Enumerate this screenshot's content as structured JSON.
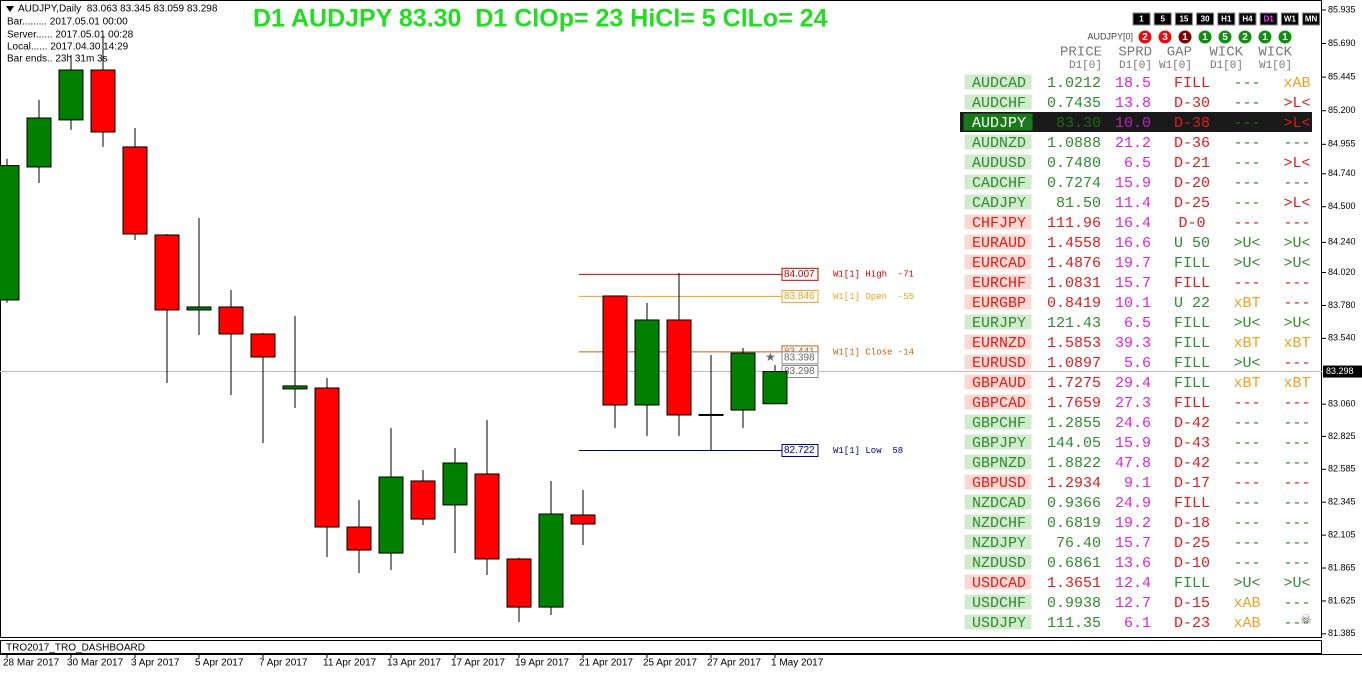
{
  "info": {
    "symbol_line": "AUDJPY,Daily  83.063 83.345 83.059 83.298",
    "lines": [
      "Bar......... 2017.05.01 00:00",
      "Server...... 2017.05.01 00:28",
      "Local...... 2017.04.30 14:29",
      "Bar ends.. 23h 31m 3s"
    ]
  },
  "chart_data": {
    "type": "candlestick",
    "title": "D1 AUDJPY 83.30  D1 ClOp= 23 HiCl= 5 ClLo= 24",
    "categories": [
      "28 Mar 2017",
      null,
      "30 Mar 2017",
      null,
      "3 Apr 2017",
      null,
      "5 Apr 2017",
      null,
      "7 Apr 2017",
      null,
      "11 Apr 2017",
      null,
      "13 Apr 2017",
      null,
      "17 Apr 2017",
      null,
      "19 Apr 2017",
      null,
      "21 Apr 2017",
      null,
      "25 Apr 2017",
      null,
      "27 Apr 2017",
      null,
      "1 May 2017"
    ],
    "open": [
      83.82,
      84.79,
      85.133,
      85.497,
      84.936,
      84.294,
      83.747,
      83.769,
      83.572,
      83.171,
      83.178,
      82.164,
      81.974,
      82.5,
      82.325,
      82.551,
      81.931,
      81.58,
      82.252,
      83.849,
      83.054,
      83.674,
      82.981,
      83.017,
      83.063
    ],
    "high": [
      84.85,
      85.279,
      85.607,
      85.753,
      85.074,
      84.3,
      84.418,
      83.893,
      83.58,
      83.703,
      83.251,
      82.361,
      82.886,
      82.58,
      82.74,
      82.945,
      81.94,
      82.5,
      82.434,
      83.85,
      83.798,
      84.017,
      83.419,
      83.47,
      83.345
    ],
    "low": [
      83.8,
      84.673,
      85.06,
      84.936,
      84.257,
      83.214,
      83.564,
      83.127,
      82.777,
      83.032,
      81.945,
      81.829,
      81.85,
      82.179,
      81.974,
      81.814,
      81.471,
      81.522,
      82.033,
      82.886,
      82.828,
      82.828,
      82.722,
      82.886,
      83.059
    ],
    "close": [
      84.8,
      85.147,
      85.497,
      85.045,
      84.301,
      83.747,
      83.769,
      83.572,
      83.404,
      83.193,
      82.164,
      81.996,
      82.529,
      82.222,
      82.631,
      81.931,
      81.58,
      82.259,
      82.186,
      83.054,
      83.674,
      82.981,
      82.985,
      83.433,
      83.298
    ],
    "up_color": "#008000",
    "down_color": "#ff0000",
    "ylim": [
      81.362,
      85.993
    ],
    "yticks": [
      85.935,
      {
        "value": 85.69,
        "label": "85.690"
      },
      85.445,
      {
        "value": 85.2,
        "label": "85.200"
      },
      84.955,
      {
        "value": 84.74,
        "label": "84.740"
      },
      {
        "value": 84.5,
        "label": "84.500"
      },
      {
        "value": 84.24,
        "label": "84.240"
      },
      {
        "value": 84.02,
        "label": "84.020"
      },
      {
        "value": 83.78,
        "label": "83.780"
      },
      {
        "value": 83.54,
        "label": "83.540"
      },
      {
        "value": 83.06,
        "label": "83.060"
      },
      82.825,
      82.585,
      82.345,
      82.105,
      81.865,
      81.625,
      81.385
    ],
    "last_price": 83.298,
    "levels": [
      {
        "value": 84.007,
        "label": "W1[1] High  -71",
        "color": "#cc0000"
      },
      {
        "value": 83.846,
        "label": "W1[1] Open  -55",
        "color": "#f0a020"
      },
      {
        "value": 83.441,
        "label": "W1[1] Close -14",
        "color": "#c0601a"
      },
      {
        "value": 82.722,
        "label": "W1[1] Low  58",
        "color": "#000090"
      }
    ],
    "price_boxes": [
      83.398,
      83.298
    ]
  },
  "indicator_name": "TRO2017_TRO_DASHBOARD",
  "dashboard": {
    "timeframes": [
      {
        "label": "1",
        "color": "#ffffff"
      },
      {
        "label": "5",
        "color": "#ffffff"
      },
      {
        "label": "15",
        "color": "#ffffff"
      },
      {
        "label": "30",
        "color": "#ffffff"
      },
      {
        "label": "H1",
        "color": "#ffffff"
      },
      {
        "label": "H4",
        "color": "#ffffff"
      },
      {
        "label": "D1",
        "color": "#ff40ff"
      },
      {
        "label": "W1",
        "color": "#ffffff"
      },
      {
        "label": "MN",
        "color": "#ffffff"
      }
    ],
    "symbol": "AUDJPY[0]",
    "counts": [
      {
        "label": "2",
        "color": "#e01010"
      },
      {
        "label": "3",
        "color": "#e01010"
      },
      {
        "label": "1",
        "color": "#800000"
      },
      {
        "label": "1",
        "color": "#109010"
      },
      {
        "label": "5",
        "color": "#109010"
      },
      {
        "label": "2",
        "color": "#109010"
      },
      {
        "label": "1",
        "color": "#109010"
      },
      {
        "label": "1",
        "color": "#109010"
      }
    ],
    "columns": [
      [
        "PRICE",
        "D1[0]"
      ],
      [
        "SPRD",
        "D1[0]"
      ],
      [
        "GAP",
        "W1[0]"
      ],
      [
        "WICK",
        "D1[0]"
      ],
      [
        "WICK",
        "W1[0]"
      ]
    ],
    "highlight_row": 2,
    "rows": [
      {
        "cells": [
          "AUDCAD",
          "1.0212",
          "18.5",
          "FILL",
          "---",
          "xAB"
        ],
        "colors": [
          "#2e8b2e",
          "#2e8b2e",
          "#e020e0",
          "#e01b1b",
          "#2e8b2e",
          "#f0a020"
        ]
      },
      {
        "cells": [
          "AUDCHF",
          "0.7435",
          "13.8",
          "D-30",
          "---",
          ">L<"
        ],
        "colors": [
          "#2e8b2e",
          "#2e8b2e",
          "#e020e0",
          "#e01b1b",
          "#2e8b2e",
          "#e01b1b"
        ]
      },
      {
        "cells": [
          "AUDJPY",
          "83.30",
          "10.0",
          "D-38",
          "---",
          ">L<"
        ],
        "colors": [
          "#ffffff",
          "#1a6a1a",
          "#c020c0",
          "#e01b1b",
          "#1a6a1a",
          "#e01b1b"
        ]
      },
      {
        "cells": [
          "AUDNZD",
          "1.0888",
          "21.2",
          "D-36",
          "---",
          "---"
        ],
        "colors": [
          "#2e8b2e",
          "#2e8b2e",
          "#e020e0",
          "#e01b1b",
          "#2e8b2e",
          "#2e8b2e"
        ]
      },
      {
        "cells": [
          "AUDUSD",
          "0.7480",
          "6.5",
          "D-21",
          "---",
          ">L<"
        ],
        "colors": [
          "#2e8b2e",
          "#2e8b2e",
          "#e020e0",
          "#e01b1b",
          "#2e8b2e",
          "#e01b1b"
        ]
      },
      {
        "cells": [
          "CADCHF",
          "0.7274",
          "15.9",
          "D-20",
          "---",
          "---"
        ],
        "colors": [
          "#2e8b2e",
          "#2e8b2e",
          "#e020e0",
          "#e01b1b",
          "#2e8b2e",
          "#2e8b2e"
        ]
      },
      {
        "cells": [
          "CADJPY",
          "81.50",
          "11.4",
          "D-25",
          "---",
          ">L<"
        ],
        "colors": [
          "#2e8b2e",
          "#2e8b2e",
          "#e020e0",
          "#e01b1b",
          "#2e8b2e",
          "#e01b1b"
        ]
      },
      {
        "cells": [
          "CHFJPY",
          "111.96",
          "16.4",
          "D-0",
          "---",
          "---"
        ],
        "colors": [
          "#e01b1b",
          "#e01b1b",
          "#e020e0",
          "#e01b1b",
          "#e01b1b",
          "#e01b1b"
        ]
      },
      {
        "cells": [
          "EURAUD",
          "1.4558",
          "16.6",
          "U 50",
          ">U<",
          ">U<"
        ],
        "colors": [
          "#e01b1b",
          "#e01b1b",
          "#e020e0",
          "#2e8b2e",
          "#2e8b2e",
          "#2e8b2e"
        ]
      },
      {
        "cells": [
          "EURCAD",
          "1.4876",
          "19.7",
          "FILL",
          ">U<",
          ">U<"
        ],
        "colors": [
          "#e01b1b",
          "#e01b1b",
          "#e020e0",
          "#2e8b2e",
          "#2e8b2e",
          "#2e8b2e"
        ]
      },
      {
        "cells": [
          "EURCHF",
          "1.0831",
          "15.7",
          "FILL",
          "---",
          "---"
        ],
        "colors": [
          "#e01b1b",
          "#e01b1b",
          "#e020e0",
          "#e01b1b",
          "#e01b1b",
          "#e01b1b"
        ]
      },
      {
        "cells": [
          "EURGBP",
          "0.8419",
          "10.1",
          "U 22",
          "xBT",
          "---"
        ],
        "colors": [
          "#e01b1b",
          "#e01b1b",
          "#e020e0",
          "#2e8b2e",
          "#f0a020",
          "#e01b1b"
        ]
      },
      {
        "cells": [
          "EURJPY",
          "121.43",
          "6.5",
          "FILL",
          ">U<",
          ">U<"
        ],
        "colors": [
          "#2e8b2e",
          "#2e8b2e",
          "#e020e0",
          "#2e8b2e",
          "#2e8b2e",
          "#2e8b2e"
        ]
      },
      {
        "cells": [
          "EURNZD",
          "1.5853",
          "39.3",
          "FILL",
          "xBT",
          "xBT"
        ],
        "colors": [
          "#e01b1b",
          "#e01b1b",
          "#e020e0",
          "#2e8b2e",
          "#f0a020",
          "#f0a020"
        ]
      },
      {
        "cells": [
          "EURUSD",
          "1.0897",
          "5.6",
          "FILL",
          ">U<",
          "---"
        ],
        "colors": [
          "#e01b1b",
          "#e01b1b",
          "#e020e0",
          "#2e8b2e",
          "#2e8b2e",
          "#e01b1b"
        ]
      },
      {
        "cells": [
          "GBPAUD",
          "1.7275",
          "29.4",
          "FILL",
          "xBT",
          "xBT"
        ],
        "colors": [
          "#e01b1b",
          "#e01b1b",
          "#e020e0",
          "#2e8b2e",
          "#f0a020",
          "#f0a020"
        ]
      },
      {
        "cells": [
          "GBPCAD",
          "1.7659",
          "27.3",
          "FILL",
          "---",
          "---"
        ],
        "colors": [
          "#e01b1b",
          "#e01b1b",
          "#e020e0",
          "#e01b1b",
          "#e01b1b",
          "#e01b1b"
        ]
      },
      {
        "cells": [
          "GBPCHF",
          "1.2855",
          "24.6",
          "D-42",
          "---",
          "---"
        ],
        "colors": [
          "#2e8b2e",
          "#2e8b2e",
          "#e020e0",
          "#e01b1b",
          "#2e8b2e",
          "#2e8b2e"
        ]
      },
      {
        "cells": [
          "GBPJPY",
          "144.05",
          "15.9",
          "D-43",
          "---",
          "---"
        ],
        "colors": [
          "#2e8b2e",
          "#2e8b2e",
          "#e020e0",
          "#e01b1b",
          "#2e8b2e",
          "#2e8b2e"
        ]
      },
      {
        "cells": [
          "GBPNZD",
          "1.8822",
          "47.8",
          "D-42",
          "---",
          "---"
        ],
        "colors": [
          "#2e8b2e",
          "#2e8b2e",
          "#e020e0",
          "#e01b1b",
          "#2e8b2e",
          "#2e8b2e"
        ]
      },
      {
        "cells": [
          "GBPUSD",
          "1.2934",
          "9.1",
          "D-17",
          "---",
          "---"
        ],
        "colors": [
          "#e01b1b",
          "#e01b1b",
          "#e020e0",
          "#e01b1b",
          "#e01b1b",
          "#e01b1b"
        ]
      },
      {
        "cells": [
          "NZDCAD",
          "0.9366",
          "24.9",
          "FILL",
          "---",
          "---"
        ],
        "colors": [
          "#2e8b2e",
          "#2e8b2e",
          "#e020e0",
          "#e01b1b",
          "#2e8b2e",
          "#2e8b2e"
        ]
      },
      {
        "cells": [
          "NZDCHF",
          "0.6819",
          "19.2",
          "D-18",
          "---",
          "---"
        ],
        "colors": [
          "#2e8b2e",
          "#2e8b2e",
          "#e020e0",
          "#e01b1b",
          "#2e8b2e",
          "#2e8b2e"
        ]
      },
      {
        "cells": [
          "NZDJPY",
          "76.40",
          "15.7",
          "D-25",
          "---",
          "---"
        ],
        "colors": [
          "#2e8b2e",
          "#2e8b2e",
          "#e020e0",
          "#e01b1b",
          "#2e8b2e",
          "#2e8b2e"
        ]
      },
      {
        "cells": [
          "NZDUSD",
          "0.6861",
          "13.6",
          "D-10",
          "---",
          "---"
        ],
        "colors": [
          "#2e8b2e",
          "#2e8b2e",
          "#e020e0",
          "#e01b1b",
          "#2e8b2e",
          "#2e8b2e"
        ]
      },
      {
        "cells": [
          "USDCAD",
          "1.3651",
          "12.4",
          "FILL",
          ">U<",
          ">U<"
        ],
        "colors": [
          "#e01b1b",
          "#e01b1b",
          "#e020e0",
          "#2e8b2e",
          "#2e8b2e",
          "#2e8b2e"
        ]
      },
      {
        "cells": [
          "USDCHF",
          "0.9938",
          "12.7",
          "D-15",
          "xAB",
          "---"
        ],
        "colors": [
          "#2e8b2e",
          "#2e8b2e",
          "#e020e0",
          "#e01b1b",
          "#f0a020",
          "#2e8b2e"
        ]
      },
      {
        "cells": [
          "USDJPY",
          "111.35",
          "6.1",
          "D-23",
          "xAB",
          "---"
        ],
        "colors": [
          "#2e8b2e",
          "#2e8b2e",
          "#e020e0",
          "#e01b1b",
          "#f0a020",
          "#2e8b2e"
        ]
      }
    ]
  }
}
